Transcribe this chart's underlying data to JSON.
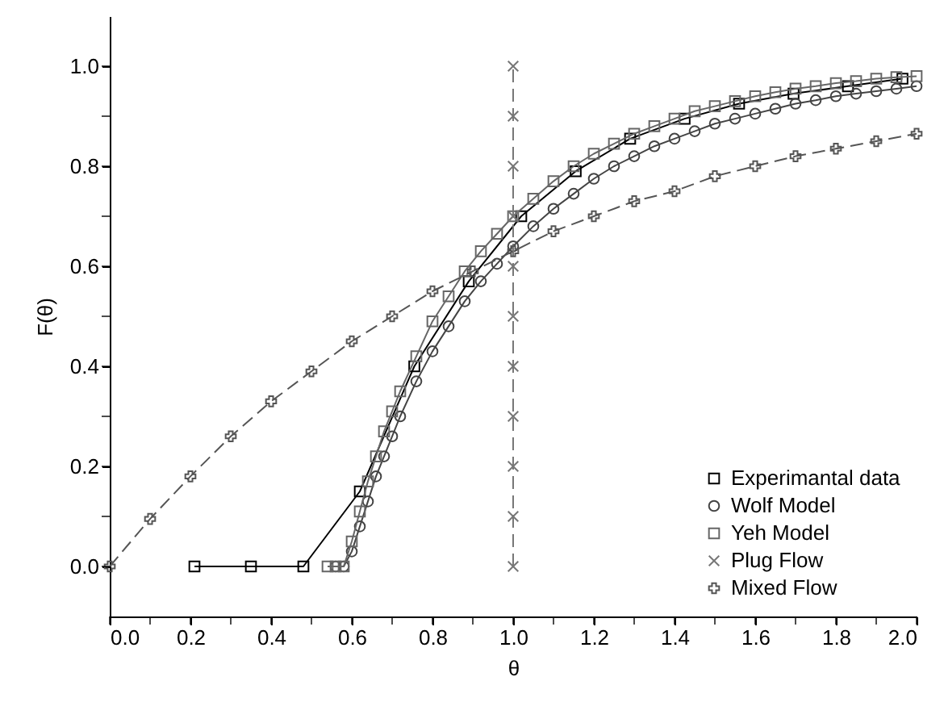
{
  "chart_data": {
    "type": "line",
    "xlabel": "θ",
    "ylabel": "F(θ)",
    "xlim": [
      0,
      2.0
    ],
    "ylim": [
      -0.1,
      1.1
    ],
    "xticks": [
      {
        "value": 0,
        "label": "0.0"
      },
      {
        "value": 0.1,
        "label": null
      },
      {
        "value": 0.2,
        "label": "0.2"
      },
      {
        "value": 0.3,
        "label": null
      },
      {
        "value": 0.4,
        "label": "0.4"
      },
      {
        "value": 0.5,
        "label": null
      },
      {
        "value": 0.6,
        "label": "0.6"
      },
      {
        "value": 0.7,
        "label": null
      },
      {
        "value": 0.8,
        "label": "0.8"
      },
      {
        "value": 0.9,
        "label": null
      },
      {
        "value": 1.0,
        "label": "1.0"
      },
      {
        "value": 1.1,
        "label": null
      },
      {
        "value": 1.2,
        "label": "1.2"
      },
      {
        "value": 1.3,
        "label": null
      },
      {
        "value": 1.4,
        "label": "1.4"
      },
      {
        "value": 1.5,
        "label": null
      },
      {
        "value": 1.6,
        "label": "1.6"
      },
      {
        "value": 1.7,
        "label": null
      },
      {
        "value": 1.8,
        "label": "1.8"
      },
      {
        "value": 1.9,
        "label": null
      },
      {
        "value": 2.0,
        "label": "2.0"
      }
    ],
    "yticks": [
      {
        "value": 0,
        "label": "0.0"
      },
      {
        "value": 0.1,
        "label": null
      },
      {
        "value": 0.2,
        "label": "0.2"
      },
      {
        "value": 0.3,
        "label": null
      },
      {
        "value": 0.4,
        "label": "0.4"
      },
      {
        "value": 0.5,
        "label": null
      },
      {
        "value": 0.6,
        "label": "0.6"
      },
      {
        "value": 0.7,
        "label": null
      },
      {
        "value": 0.8,
        "label": "0.8"
      },
      {
        "value": 0.9,
        "label": null
      },
      {
        "value": 1.0,
        "label": "1.0"
      }
    ],
    "grid": false,
    "legend": "bottom right",
    "series": [
      {
        "name": "Experimantal data",
        "color": "#000000",
        "marker": "square",
        "line_style": "solid",
        "x": [
          0.21,
          0.35,
          0.48,
          0.62,
          0.755,
          0.89,
          1.02,
          1.155,
          1.29,
          1.425,
          1.56,
          1.695,
          1.83,
          1.965
        ],
        "values": [
          0,
          0,
          0,
          0.15,
          0.4,
          0.57,
          0.7,
          0.79,
          0.855,
          0.895,
          0.925,
          0.945,
          0.96,
          0.975
        ]
      },
      {
        "name": "Wolf Model",
        "color": "#444444",
        "marker": "circle",
        "line_style": "solid",
        "x": [
          0.56,
          0.58,
          0.6,
          0.62,
          0.64,
          0.66,
          0.68,
          0.7,
          0.72,
          0.76,
          0.8,
          0.84,
          0.88,
          0.92,
          0.96,
          1.0,
          1.05,
          1.1,
          1.15,
          1.2,
          1.25,
          1.3,
          1.35,
          1.4,
          1.45,
          1.5,
          1.55,
          1.6,
          1.65,
          1.7,
          1.75,
          1.8,
          1.85,
          1.9,
          1.95,
          2.0
        ],
        "values": [
          0,
          0,
          0.03,
          0.08,
          0.13,
          0.18,
          0.22,
          0.26,
          0.3,
          0.37,
          0.43,
          0.48,
          0.53,
          0.57,
          0.605,
          0.64,
          0.68,
          0.715,
          0.745,
          0.775,
          0.8,
          0.82,
          0.84,
          0.855,
          0.87,
          0.885,
          0.895,
          0.905,
          0.915,
          0.925,
          0.932,
          0.94,
          0.945,
          0.95,
          0.955,
          0.96
        ]
      },
      {
        "name": "Yeh Model",
        "color": "#666666",
        "marker": "square",
        "line_style": "solid",
        "x": [
          0.54,
          0.56,
          0.58,
          0.6,
          0.62,
          0.64,
          0.66,
          0.68,
          0.7,
          0.72,
          0.76,
          0.8,
          0.84,
          0.88,
          0.92,
          0.96,
          1.0,
          1.05,
          1.1,
          1.15,
          1.2,
          1.25,
          1.3,
          1.35,
          1.4,
          1.45,
          1.5,
          1.55,
          1.6,
          1.65,
          1.7,
          1.75,
          1.8,
          1.85,
          1.9,
          1.95,
          2.0
        ],
        "values": [
          0,
          0,
          0,
          0.05,
          0.11,
          0.17,
          0.22,
          0.27,
          0.31,
          0.35,
          0.42,
          0.49,
          0.54,
          0.59,
          0.63,
          0.665,
          0.7,
          0.735,
          0.77,
          0.8,
          0.825,
          0.845,
          0.865,
          0.88,
          0.895,
          0.91,
          0.92,
          0.93,
          0.94,
          0.948,
          0.955,
          0.96,
          0.966,
          0.97,
          0.975,
          0.978,
          0.98
        ]
      },
      {
        "name": "Plug Flow",
        "color": "#777777",
        "marker": "x",
        "line_style": "dashed",
        "x": [
          1.0,
          1.0,
          1.0,
          1.0,
          1.0,
          1.0,
          1.0,
          1.0,
          1.0,
          1.0,
          1.0
        ],
        "values": [
          0,
          0.1,
          0.2,
          0.3,
          0.4,
          0.5,
          0.6,
          0.7,
          0.8,
          0.9,
          1.0
        ]
      },
      {
        "name": "Mixed Flow",
        "color": "#555555",
        "marker": "plus",
        "line_style": "dashed",
        "x": [
          0,
          0.1,
          0.2,
          0.3,
          0.4,
          0.5,
          0.6,
          0.7,
          0.8,
          0.9,
          1.0,
          1.1,
          1.2,
          1.3,
          1.4,
          1.5,
          1.6,
          1.7,
          1.8,
          1.9,
          2.0
        ],
        "values": [
          0,
          0.095,
          0.18,
          0.26,
          0.33,
          0.39,
          0.45,
          0.5,
          0.55,
          0.59,
          0.63,
          0.67,
          0.7,
          0.73,
          0.75,
          0.78,
          0.8,
          0.82,
          0.835,
          0.85,
          0.865
        ]
      }
    ]
  }
}
